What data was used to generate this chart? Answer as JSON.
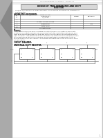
{
  "bg_color": "#c8c8c8",
  "paper_color": "#ffffff",
  "shadow_color": "#999999",
  "fold_color": "#b0b0b0",
  "header_text": "CITY ENGINEERING LAB MANUAL   EXP NO: 12",
  "title_line1": "DESIGN OF PRBS GENERATOR AND SHIFT",
  "title_line2": "REGISTER",
  "aim_line1": "To study the operation of PRBS generator and to design and study the operation of",
  "aim_line2": "Shift Register.",
  "apparatus_header": "APPARATUS REQUIRED:",
  "col_headers": [
    "SL.\nNo.",
    "NAME OF THE\nAPPARATUS /\nIC / TYPE",
    "RANGE",
    "QUANTITY"
  ],
  "row1": [
    "1.",
    "",
    "",
    ""
  ],
  "row2": [
    "2.",
    "IC 7406  IC 7474  IC 7486",
    "",
    ""
  ],
  "row3": [
    "3.",
    "Bread Board",
    "",
    "One"
  ],
  "row4": [
    "4.",
    "Patch Chord",
    "",
    ""
  ],
  "row5": [
    "5.",
    "Connecting wires",
    "",
    ""
  ],
  "theory_header": "Theory:",
  "theory_lines": [
    "A shift register is the one which is capable of shifting its binary information in one or both",
    "directions. The output of a given flip flop is connected to the input of the next flip flop. Each",
    "clock pulse causes simultaneously shifts the contents of the registers one bit position to the",
    "right. The serial  input determines what goes into the left most flip flop will be passed serially",
    "to the next flip flop after each clock pulse. When preset enable is enabled then it acts as",
    "parallel in parallel out shift register.  When preset is disabled then it acts as a serial in serial",
    "out shift register."
  ],
  "circuit_header": "CIRCUIT DIAGRAM:",
  "universal_header": "UNIVERSAL SHIFT REGISTER:",
  "text_color": "#222222",
  "line_color": "#555555",
  "diagram_color": "#444444",
  "page_num": "1"
}
